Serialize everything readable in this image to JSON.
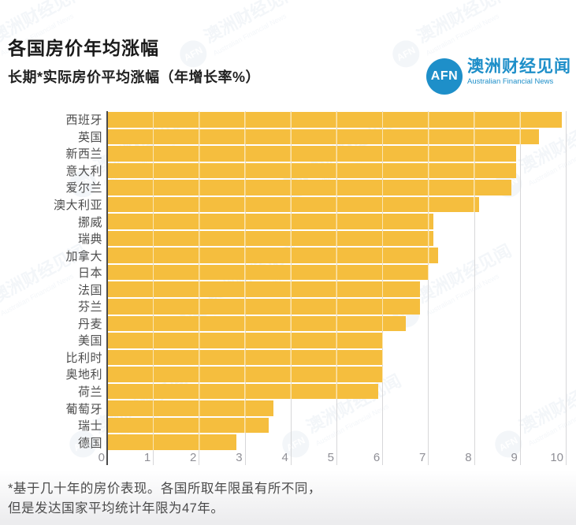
{
  "header": {
    "title": "各国房价年均涨幅",
    "subtitle": "长期*实际房价平均涨幅（年增长率%）"
  },
  "logo": {
    "abbr": "AFN",
    "name_zh": "澳洲财经见闻",
    "name_en": "Australian Financial News",
    "brand_color": "#1E8FC9"
  },
  "watermark": {
    "abbr": "AFN",
    "text_zh": "澳洲财经见闻",
    "text_en": "Australian Financial News"
  },
  "chart_data": {
    "type": "bar",
    "orientation": "horizontal",
    "title": "各国房价年均涨幅",
    "subtitle": "长期*实际房价平均涨幅（年增长率%）",
    "xlabel": "年增长率%",
    "ylabel": "",
    "xlim": [
      0,
      10
    ],
    "xticks": [
      0,
      1,
      2,
      3,
      4,
      5,
      6,
      7,
      8,
      9,
      10
    ],
    "grid": true,
    "bar_color": "#F5BE3E",
    "categories": [
      "西班牙",
      "英国",
      "新西兰",
      "意大利",
      "爱尔兰",
      "澳大利亚",
      "挪威",
      "瑞典",
      "加拿大",
      "日本",
      "法国",
      "芬兰",
      "丹麦",
      "美国",
      "比利时",
      "奥地利",
      "荷兰",
      "葡萄牙",
      "瑞士",
      "德国"
    ],
    "values": [
      9.9,
      9.4,
      8.9,
      8.9,
      8.8,
      8.1,
      7.1,
      7.1,
      7.2,
      7.0,
      6.8,
      6.8,
      6.5,
      6.0,
      6.0,
      6.0,
      5.9,
      3.6,
      3.5,
      2.8
    ]
  },
  "footnote": {
    "line1": "*基于几十年的房价表现。各国所取年限虽有所不同，",
    "line2": "但是发达国家平均统计年限为47年。"
  }
}
